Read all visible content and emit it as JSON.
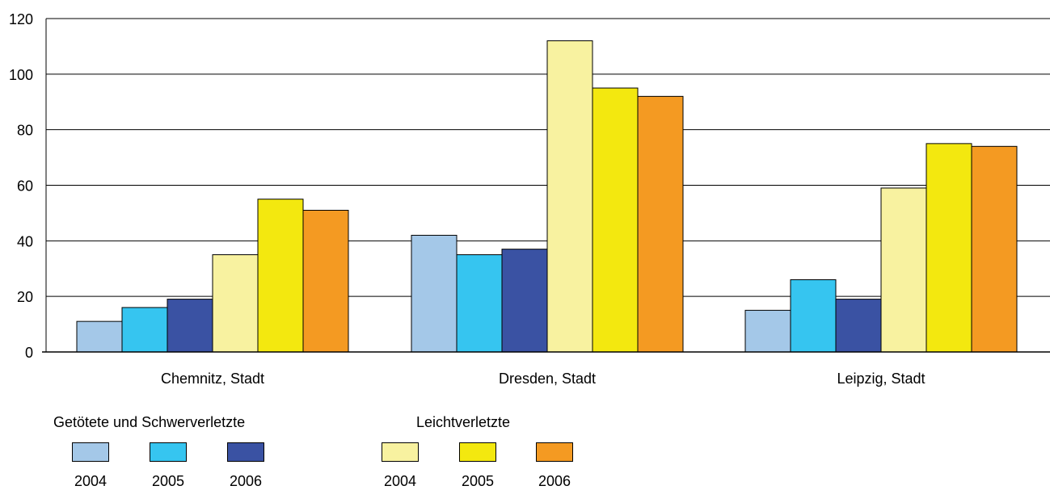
{
  "chart_data": {
    "type": "bar",
    "categories": [
      "Chemnitz, Stadt",
      "Dresden, Stadt",
      "Leipzig, Stadt"
    ],
    "series": [
      {
        "name": "2004",
        "group": "Getötete und Schwerverletzte",
        "color": "#a4c8e8",
        "values": [
          11,
          42,
          15
        ]
      },
      {
        "name": "2005",
        "group": "Getötete und Schwerverletzte",
        "color": "#36c5f0",
        "values": [
          16,
          35,
          26
        ]
      },
      {
        "name": "2006",
        "group": "Getötete und Schwerverletzte",
        "color": "#3a52a3",
        "values": [
          19,
          37,
          19
        ]
      },
      {
        "name": "2004",
        "group": "Leichtverletzte",
        "color": "#f8f2a0",
        "values": [
          35,
          112,
          59
        ]
      },
      {
        "name": "2005",
        "group": "Leichtverletzte",
        "color": "#f3e80f",
        "values": [
          55,
          95,
          75
        ]
      },
      {
        "name": "2006",
        "group": "Leichtverletzte",
        "color": "#f49a22",
        "values": [
          51,
          92,
          74
        ]
      }
    ],
    "yticks": [
      "0",
      "20",
      "40",
      "60",
      "80",
      "100",
      "120"
    ],
    "ylim": [
      0,
      120
    ],
    "grid": true,
    "legend": {
      "placement": "bottom",
      "groups": [
        {
          "title": "Getötete und Schwerverletzte",
          "items": [
            {
              "label": "2004",
              "color": "#a4c8e8"
            },
            {
              "label": "2005",
              "color": "#36c5f0"
            },
            {
              "label": "2006",
              "color": "#3a52a3"
            }
          ]
        },
        {
          "title": "Leichtverletzte",
          "items": [
            {
              "label": "2004",
              "color": "#f8f2a0"
            },
            {
              "label": "2005",
              "color": "#f3e80f"
            },
            {
              "label": "2006",
              "color": "#f49a22"
            }
          ]
        }
      ]
    }
  }
}
